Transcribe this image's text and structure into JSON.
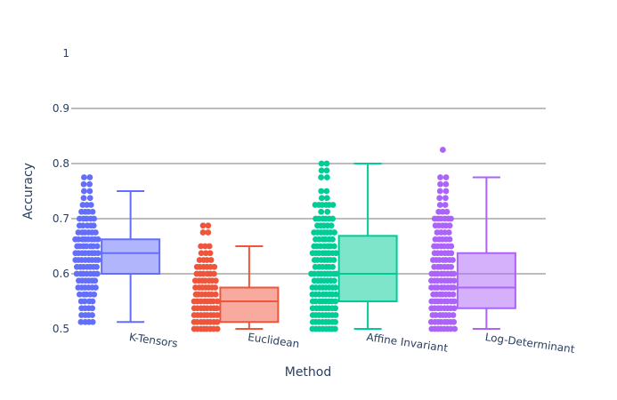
{
  "chart_data": {
    "type": "box",
    "title": "",
    "xlabel": "Method",
    "ylabel": "Accuracy",
    "ylim": [
      0.5,
      1.0
    ],
    "yticks": [
      0.5,
      0.6,
      0.7,
      0.8,
      0.9,
      1
    ],
    "ytick_labels": [
      "0.5",
      "0.6",
      "0.7",
      "0.8",
      "0.9",
      "1"
    ],
    "grid": true,
    "legend": "none",
    "points_mode": "all",
    "categories": [
      "K-Tensors",
      "Euclidean",
      "Affine Invariant",
      "Log-Determinant"
    ],
    "series": [
      {
        "name": "K-Tensors",
        "color": "#636efa",
        "box": {
          "min": 0.5125,
          "q1": 0.6,
          "median": 0.6375,
          "q3": 0.6625,
          "max": 0.75
        },
        "point_levels": [
          {
            "value": 0.775,
            "count": 2
          },
          {
            "value": 0.7625,
            "count": 2
          },
          {
            "value": 0.75,
            "count": 2
          },
          {
            "value": 0.7375,
            "count": 2
          },
          {
            "value": 0.725,
            "count": 3
          },
          {
            "value": 0.7125,
            "count": 4
          },
          {
            "value": 0.7,
            "count": 5
          },
          {
            "value": 0.6875,
            "count": 5
          },
          {
            "value": 0.675,
            "count": 6
          },
          {
            "value": 0.6625,
            "count": 8
          },
          {
            "value": 0.65,
            "count": 7
          },
          {
            "value": 0.6375,
            "count": 8
          },
          {
            "value": 0.625,
            "count": 8
          },
          {
            "value": 0.6125,
            "count": 7
          },
          {
            "value": 0.6,
            "count": 7
          },
          {
            "value": 0.5875,
            "count": 6
          },
          {
            "value": 0.575,
            "count": 6
          },
          {
            "value": 0.5625,
            "count": 5
          },
          {
            "value": 0.55,
            "count": 4
          },
          {
            "value": 0.5375,
            "count": 4
          },
          {
            "value": 0.525,
            "count": 4
          },
          {
            "value": 0.5125,
            "count": 4
          }
        ]
      },
      {
        "name": "Euclidean",
        "color": "#ef553b",
        "box": {
          "min": 0.5,
          "q1": 0.5125,
          "median": 0.55,
          "q3": 0.575,
          "max": 0.65
        },
        "point_levels": [
          {
            "value": 0.6875,
            "count": 2
          },
          {
            "value": 0.675,
            "count": 2
          },
          {
            "value": 0.65,
            "count": 3
          },
          {
            "value": 0.6375,
            "count": 3
          },
          {
            "value": 0.625,
            "count": 4
          },
          {
            "value": 0.6125,
            "count": 6
          },
          {
            "value": 0.6,
            "count": 6
          },
          {
            "value": 0.5875,
            "count": 7
          },
          {
            "value": 0.575,
            "count": 7
          },
          {
            "value": 0.5625,
            "count": 7
          },
          {
            "value": 0.55,
            "count": 8
          },
          {
            "value": 0.5375,
            "count": 8
          },
          {
            "value": 0.525,
            "count": 8
          },
          {
            "value": 0.5125,
            "count": 8
          },
          {
            "value": 0.5,
            "count": 8
          }
        ]
      },
      {
        "name": "Affine Invariant",
        "color": "#00cc96",
        "box": {
          "min": 0.5,
          "q1": 0.55,
          "median": 0.6,
          "q3": 0.6688,
          "max": 0.8
        },
        "point_levels": [
          {
            "value": 0.8,
            "count": 2
          },
          {
            "value": 0.7875,
            "count": 2
          },
          {
            "value": 0.775,
            "count": 2
          },
          {
            "value": 0.75,
            "count": 2
          },
          {
            "value": 0.7375,
            "count": 2
          },
          {
            "value": 0.725,
            "count": 6
          },
          {
            "value": 0.7125,
            "count": 2
          },
          {
            "value": 0.7,
            "count": 6
          },
          {
            "value": 0.6875,
            "count": 5
          },
          {
            "value": 0.675,
            "count": 7
          },
          {
            "value": 0.6625,
            "count": 6
          },
          {
            "value": 0.65,
            "count": 7
          },
          {
            "value": 0.6375,
            "count": 8
          },
          {
            "value": 0.625,
            "count": 7
          },
          {
            "value": 0.6125,
            "count": 6
          },
          {
            "value": 0.6,
            "count": 9
          },
          {
            "value": 0.5875,
            "count": 7
          },
          {
            "value": 0.575,
            "count": 8
          },
          {
            "value": 0.5625,
            "count": 8
          },
          {
            "value": 0.55,
            "count": 8
          },
          {
            "value": 0.5375,
            "count": 8
          },
          {
            "value": 0.525,
            "count": 8
          },
          {
            "value": 0.5125,
            "count": 8
          },
          {
            "value": 0.5,
            "count": 8
          }
        ]
      },
      {
        "name": "Log-Determinant",
        "color": "#ab63fa",
        "box": {
          "min": 0.5,
          "q1": 0.5375,
          "median": 0.575,
          "q3": 0.6375,
          "max": 0.775
        },
        "point_levels": [
          {
            "value": 0.825,
            "count": 1
          },
          {
            "value": 0.775,
            "count": 2
          },
          {
            "value": 0.7625,
            "count": 2
          },
          {
            "value": 0.75,
            "count": 2
          },
          {
            "value": 0.7375,
            "count": 2
          },
          {
            "value": 0.725,
            "count": 2
          },
          {
            "value": 0.7125,
            "count": 3
          },
          {
            "value": 0.7,
            "count": 6
          },
          {
            "value": 0.6875,
            "count": 5
          },
          {
            "value": 0.675,
            "count": 4
          },
          {
            "value": 0.6625,
            "count": 5
          },
          {
            "value": 0.65,
            "count": 6
          },
          {
            "value": 0.6375,
            "count": 6
          },
          {
            "value": 0.625,
            "count": 7
          },
          {
            "value": 0.6125,
            "count": 6
          },
          {
            "value": 0.6,
            "count": 8
          },
          {
            "value": 0.5875,
            "count": 8
          },
          {
            "value": 0.575,
            "count": 8
          },
          {
            "value": 0.5625,
            "count": 7
          },
          {
            "value": 0.55,
            "count": 8
          },
          {
            "value": 0.5375,
            "count": 8
          },
          {
            "value": 0.525,
            "count": 7
          },
          {
            "value": 0.5125,
            "count": 8
          },
          {
            "value": 0.5,
            "count": 8
          }
        ]
      }
    ]
  }
}
